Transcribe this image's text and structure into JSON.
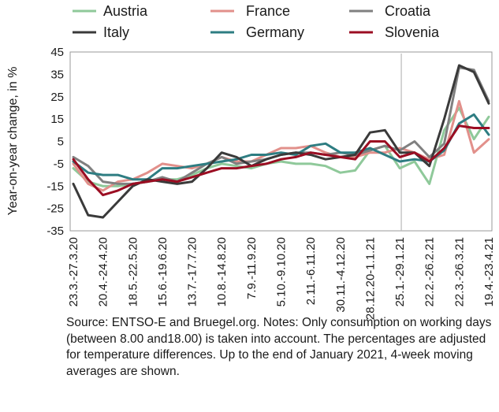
{
  "chart_data": {
    "type": "line",
    "title": "",
    "xlabel": "",
    "ylabel": "Year-on-year change, in %",
    "ylim": [
      -35,
      45
    ],
    "yticks": [
      45,
      35,
      25,
      15,
      5,
      -5,
      -15,
      -25,
      -35
    ],
    "grid": false,
    "legend_position": "top",
    "vline_after": "25.1.-29.1.21",
    "x": [
      "23.3.-27.3.20",
      "6.4.-10.4.20",
      "20.4.-24.4.20",
      "4.5.-8.5.20",
      "18.5.-22.5.20",
      "1.6.-5.6.20",
      "15.6.-19.6.20",
      "29.6.-3.7.20",
      "13.7.-17.7.20",
      "27.7.-31.7.20",
      "10.8.-14.8.20",
      "24.8.-28.8.20",
      "7.9.-11.9.20",
      "21.9.-25.9.20",
      "5.10.-9.10.20",
      "19.10.-23.10.20",
      "2.11.-6.11.20",
      "16.11.-20.11.20",
      "30.11.-4.12.20",
      "14.12.-18.12.20",
      "28.12.20-1.1.21",
      "11.1.-15.1.21",
      "25.1.-29.1.21",
      "8.2.-12.2.21",
      "22.2.-26.2.21",
      "8.3.-12.3.21",
      "22.3.-26.3.21",
      "5.4.-9.4.21",
      "19.4.-23.4.21"
    ],
    "x_labels": [
      "23.3.-27.3.20",
      "20.4.-24.4.20",
      "18.5.-22.5.20",
      "15.6.-19.6.20",
      "13.7.-17.7.20",
      "10.8.-14.8.20",
      "7.9.-11.9.20",
      "5.10.-9.10.20",
      "2.11.-6.11.20",
      "30.11.-4.12.20",
      "28.12.20-1.1.21",
      "25.1.-29.1.21",
      "22.2.-26.2.21",
      "22.3.-26.3.21",
      "19.4.-23.4.21"
    ],
    "series": [
      {
        "name": "Austria",
        "color": "#8fc99a",
        "values": [
          -7,
          -13,
          -15,
          -15,
          -14,
          -13,
          -12,
          -12,
          -10,
          -7,
          -5,
          -6,
          -7,
          -5,
          -4,
          -5,
          -5,
          -6,
          -9,
          -8,
          1,
          3,
          -7,
          -4,
          -14,
          10,
          20,
          6,
          16
        ]
      },
      {
        "name": "France",
        "color": "#e2908b",
        "values": [
          -5,
          -14,
          -17,
          -13,
          -12,
          -9,
          -5,
          -6,
          -7,
          -5,
          -2,
          -4,
          -4,
          -1,
          2,
          2,
          3,
          0,
          -2,
          -2,
          0,
          0,
          2,
          0,
          -3,
          -1,
          23,
          0,
          6
        ]
      },
      {
        "name": "Croatia",
        "color": "#808080",
        "values": [
          -2,
          -6,
          -13,
          -14,
          -14,
          -13,
          -11,
          -13,
          -9,
          -5,
          -2,
          -5,
          -4,
          -3,
          -1,
          0,
          0,
          -1,
          0,
          -1,
          1,
          3,
          1,
          5,
          -2,
          4,
          38,
          37,
          23
        ]
      },
      {
        "name": "Italy",
        "color": "#3a3a3a",
        "values": [
          -14,
          -28,
          -29,
          -22,
          -15,
          -12,
          -13,
          -14,
          -13,
          -7,
          0,
          -2,
          -6,
          -3,
          -1,
          0,
          -1,
          -3,
          -2,
          -1,
          9,
          10,
          0,
          0,
          -6,
          15,
          39,
          36,
          22
        ]
      },
      {
        "name": "Germany",
        "color": "#2e7d82",
        "values": [
          -4,
          -9,
          -10,
          -10,
          -12,
          -12,
          -7,
          -7,
          -6,
          -5,
          -4,
          -3,
          -1,
          -1,
          0,
          -1,
          3,
          4,
          0,
          0,
          2,
          -1,
          -4,
          -3,
          -4,
          1,
          13,
          17,
          8
        ]
      },
      {
        "name": "Slovenia",
        "color": "#9b0d22",
        "values": [
          -3,
          -12,
          -19,
          -17,
          -14,
          -13,
          -12,
          -13,
          -11,
          -9,
          -7,
          -7,
          -6,
          -5,
          -3,
          -2,
          0,
          -1,
          -2,
          -3,
          5,
          5,
          -2,
          0,
          -4,
          2,
          12,
          11,
          11
        ]
      }
    ]
  },
  "source_note": "Source: ENTSO-E and Bruegel.org. Notes: Only consumption on working days (between 8.00 and18.00) is taken into account. The percentages are adjusted for temperature differences. Up to the end of January 2021, 4-week moving averages are shown."
}
